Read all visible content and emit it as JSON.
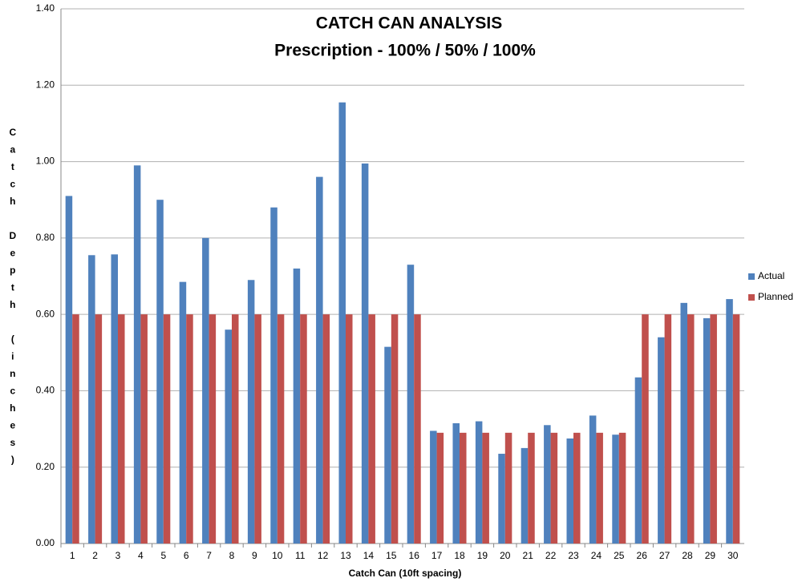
{
  "chart_data": {
    "type": "bar",
    "title": "CATCH CAN ANALYSIS",
    "subtitle": "Prescription - 100% / 50% / 100%",
    "x_label": "Catch Can (10ft spacing)",
    "y_label": "Catch Depth (inches)",
    "categories": [
      1,
      2,
      3,
      4,
      5,
      6,
      7,
      8,
      9,
      10,
      11,
      12,
      13,
      14,
      15,
      16,
      17,
      18,
      19,
      20,
      21,
      22,
      23,
      24,
      25,
      26,
      27,
      28,
      29,
      30
    ],
    "series": [
      {
        "name": "Actual",
        "color": "#4f81bd",
        "values": [
          0.91,
          0.755,
          0.757,
          0.99,
          0.9,
          0.685,
          0.8,
          0.56,
          0.69,
          0.88,
          0.72,
          0.96,
          1.155,
          0.995,
          0.515,
          0.73,
          0.295,
          0.315,
          0.32,
          0.235,
          0.25,
          0.31,
          0.275,
          0.335,
          0.285,
          0.435,
          0.54,
          0.63,
          0.59,
          0.64
        ]
      },
      {
        "name": "Planned",
        "color": "#c0504d",
        "values": [
          0.6,
          0.6,
          0.6,
          0.6,
          0.6,
          0.6,
          0.6,
          0.6,
          0.6,
          0.6,
          0.6,
          0.6,
          0.6,
          0.6,
          0.6,
          0.6,
          0.29,
          0.29,
          0.29,
          0.29,
          0.29,
          0.29,
          0.29,
          0.29,
          0.29,
          0.6,
          0.6,
          0.6,
          0.6,
          0.6
        ]
      }
    ],
    "ylim": [
      0,
      1.4
    ],
    "yticks": [
      {
        "value": 0,
        "label": "0.00"
      },
      {
        "value": 0.2,
        "label": "0.20"
      },
      {
        "value": 0.4,
        "label": "0.40"
      },
      {
        "value": 0.6,
        "label": "0.60"
      },
      {
        "value": 0.8,
        "label": "0.80"
      },
      {
        "value": 1.0,
        "label": "1.00"
      },
      {
        "value": 1.2,
        "label": "1.20"
      },
      {
        "value": 1.4,
        "label": "1.40"
      }
    ],
    "grid": true,
    "legend": "right"
  }
}
